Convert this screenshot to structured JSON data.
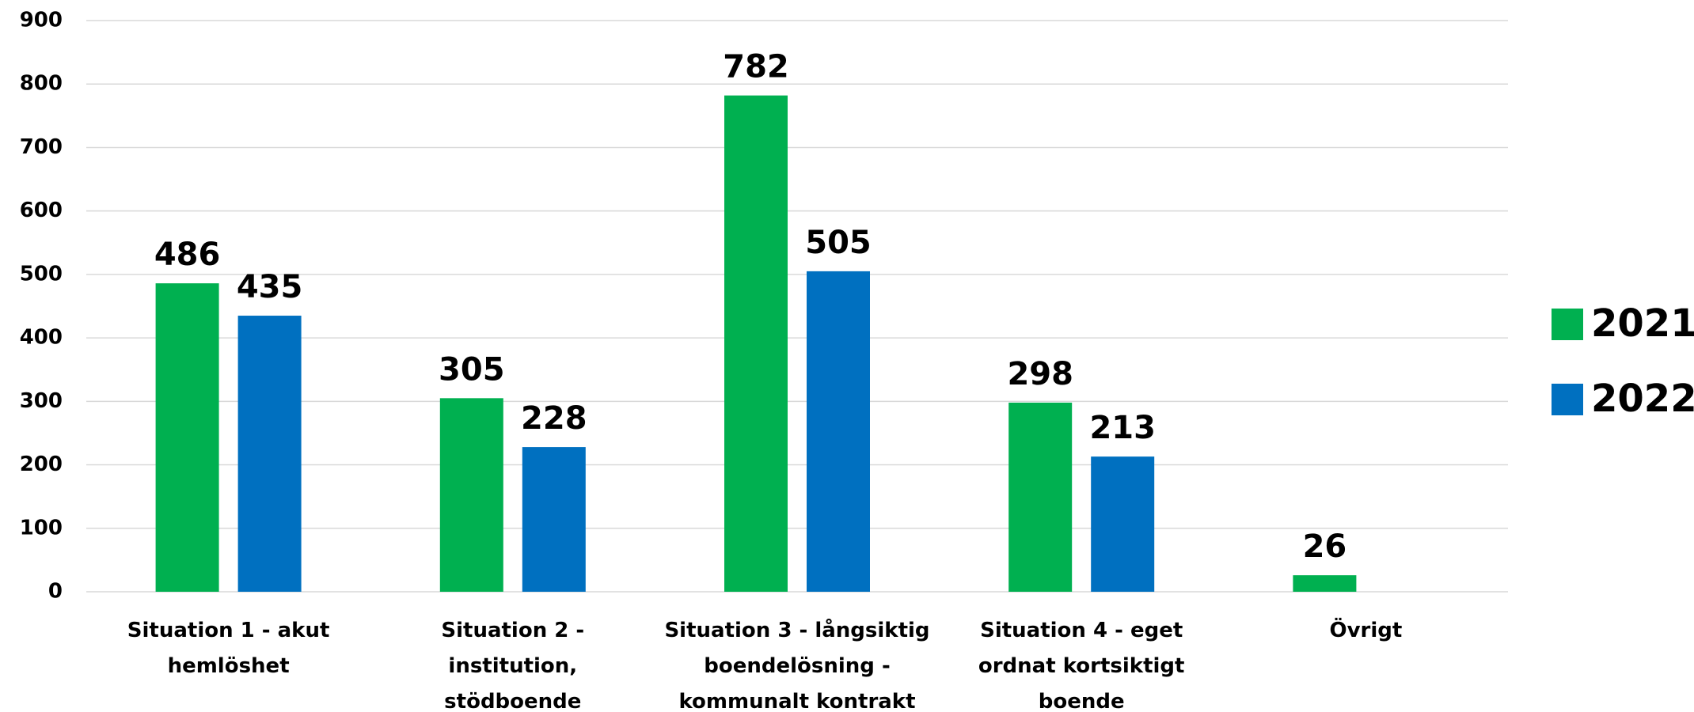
{
  "chart_data": {
    "type": "bar",
    "categories": [
      "Situation 1 - akut hemlöshet",
      "Situation 2 - institution, stödboende",
      "Situation 3 - långsiktig boendelösning - kommunalt kontrakt",
      "Situation 4 - eget ordnat kortsiktigt boende",
      "Övrigt"
    ],
    "series": [
      {
        "name": "2021",
        "color": "#00b050",
        "values": [
          486,
          305,
          782,
          298,
          26
        ]
      },
      {
        "name": "2022",
        "color": "#0070c0",
        "values": [
          435,
          228,
          505,
          213,
          null
        ]
      }
    ],
    "ylim": [
      0,
      900
    ],
    "yticks": [
      0,
      100,
      200,
      300,
      400,
      500,
      600,
      700,
      800,
      900
    ],
    "grid": true,
    "legend": "right"
  }
}
